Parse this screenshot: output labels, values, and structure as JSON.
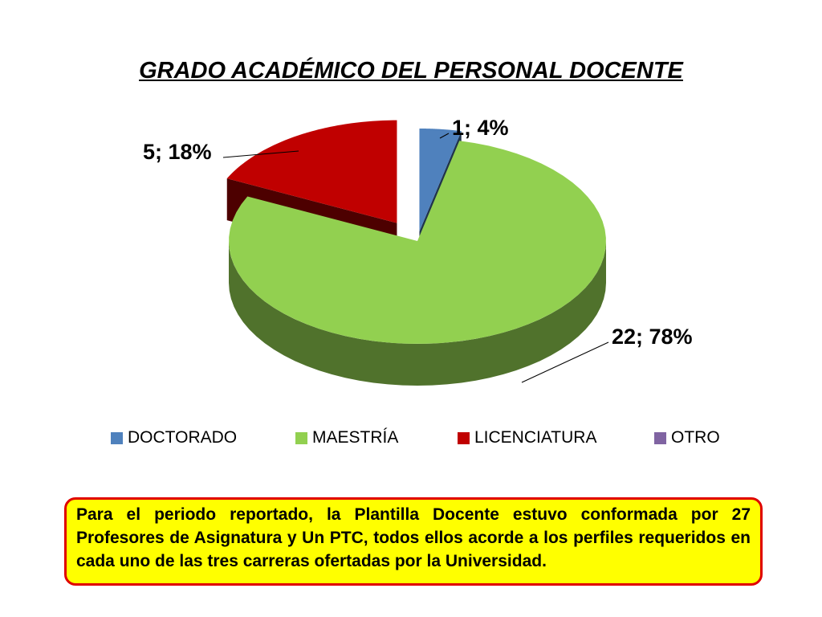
{
  "chart_data": {
    "type": "pie",
    "title": "GRADO ACADÉMICO DEL PERSONAL DOCENTE",
    "categories": [
      "DOCTORADO",
      "MAESTRÍA",
      "LICENCIATURA",
      "OTRO"
    ],
    "values": [
      1,
      22,
      5,
      0
    ],
    "percent_labels": [
      "4%",
      "78%",
      "18%",
      ""
    ],
    "data_labels": [
      "1; 4%",
      "22; 78%",
      "5; 18%",
      ""
    ],
    "colors": [
      "#4f81bd",
      "#92d050",
      "#c00000",
      "#8064a2"
    ],
    "legend_position": "bottom",
    "style": "3d-exploded"
  },
  "note": {
    "text": "Para el periodo reportado, la Plantilla Docente estuvo conformada por 27 Profesores de Asignatura y Un PTC,  todos ellos acorde a los perfiles requeridos en cada uno de las tres carreras ofertadas por la Universidad."
  }
}
